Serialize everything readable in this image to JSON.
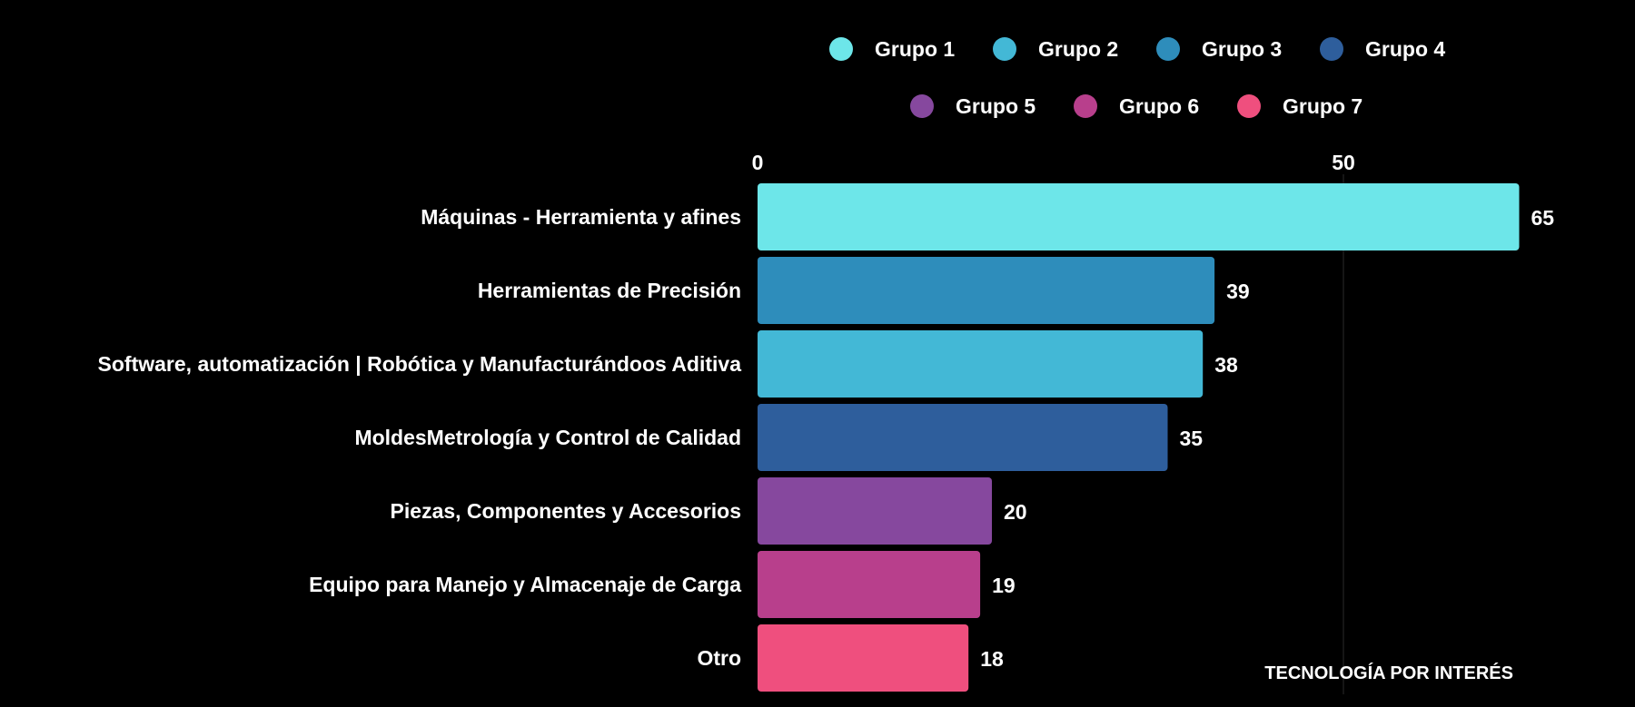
{
  "chart_data": {
    "type": "bar",
    "orientation": "horizontal",
    "categories": [
      "Máquinas - Herramienta y afines",
      "Herramientas de Precisión",
      "Software, automatización | Robótica y Manufacturándoos Aditiva",
      "MoldesMetrología y Control de Calidad",
      "Piezas, Componentes y Accesorios",
      "Equipo para Manejo y Almacenaje de Carga",
      "Otro"
    ],
    "values": [
      65,
      39,
      38,
      35,
      20,
      19,
      18
    ],
    "bar_groups": [
      "Grupo 1",
      "Grupo 3",
      "Grupo 2",
      "Grupo 4",
      "Grupo 5",
      "Grupo 6",
      "Grupo 7"
    ],
    "legend": [
      {
        "name": "Grupo 1",
        "color": "#6de6e9"
      },
      {
        "name": "Grupo 2",
        "color": "#43b8d6"
      },
      {
        "name": "Grupo 3",
        "color": "#2e8dbb"
      },
      {
        "name": "Grupo 4",
        "color": "#2e5e9c"
      },
      {
        "name": "Grupo 5",
        "color": "#86489e"
      },
      {
        "name": "Grupo 6",
        "color": "#b83f8c"
      },
      {
        "name": "Grupo 7",
        "color": "#ef4f7e"
      }
    ],
    "legend_position": "top",
    "x_ticks": [
      0,
      50
    ],
    "xlim": [
      0,
      65
    ],
    "axis_position": "top",
    "grid": true,
    "title": "TECNOLOGÍA POR INTERÉS"
  }
}
